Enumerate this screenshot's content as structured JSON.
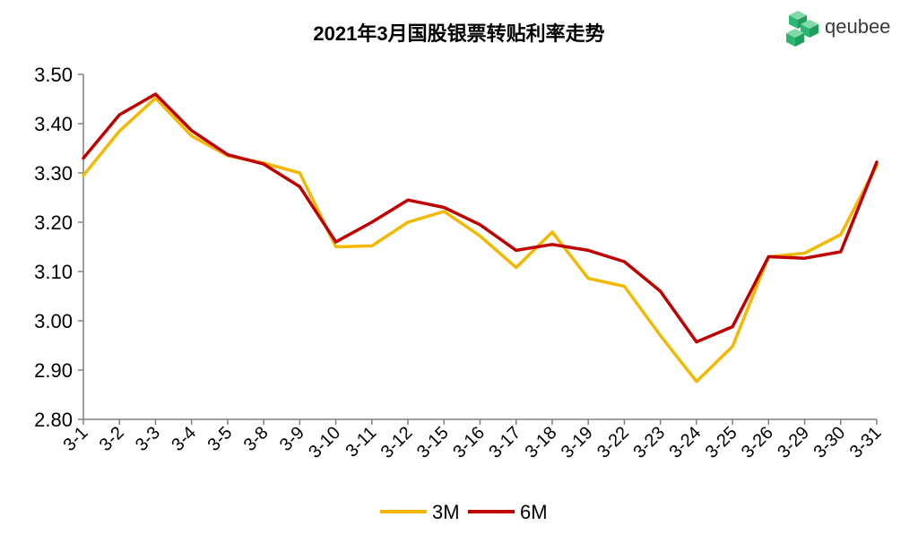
{
  "brand": {
    "name": "qeubee",
    "logo_icon": "green-cube-cluster-icon",
    "logo_colors": [
      "#2bb673",
      "#1e9e5a",
      "#7fd9a8"
    ]
  },
  "chart_data": {
    "type": "line",
    "title": "2021年3月国股银票转贴利率走势",
    "xlabel": "",
    "ylabel": "",
    "categories": [
      "3-1",
      "3-2",
      "3-3",
      "3-4",
      "3-5",
      "3-8",
      "3-9",
      "3-10",
      "3-11",
      "3-12",
      "3-15",
      "3-16",
      "3-17",
      "3-18",
      "3-19",
      "3-22",
      "3-23",
      "3-24",
      "3-25",
      "3-26",
      "3-29",
      "3-30",
      "3-31"
    ],
    "ylim": [
      2.8,
      3.5
    ],
    "yticks": [
      "2.80",
      "2.90",
      "3.00",
      "3.10",
      "3.20",
      "3.30",
      "3.40",
      "3.50"
    ],
    "grid": false,
    "legend_position": "bottom",
    "series": [
      {
        "name": "3M",
        "color": "#f5b800",
        "values": [
          3.295,
          3.385,
          3.452,
          3.375,
          3.335,
          3.32,
          3.3,
          3.15,
          3.152,
          3.2,
          3.222,
          3.172,
          3.108,
          3.18,
          3.086,
          3.07,
          2.97,
          2.877,
          2.948,
          3.13,
          3.137,
          3.175,
          3.315
        ]
      },
      {
        "name": "6M",
        "color": "#c00000",
        "values": [
          3.33,
          3.418,
          3.46,
          3.386,
          3.337,
          3.318,
          3.272,
          3.16,
          3.2,
          3.245,
          3.23,
          3.195,
          3.143,
          3.155,
          3.143,
          3.12,
          3.06,
          2.957,
          2.988,
          3.13,
          3.127,
          3.14,
          3.322
        ]
      }
    ]
  }
}
